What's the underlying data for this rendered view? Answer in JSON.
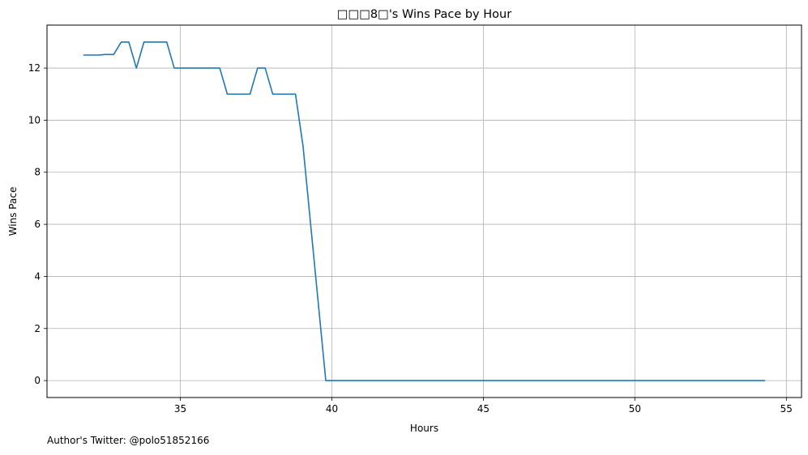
{
  "chart_data": {
    "type": "line",
    "title": "□□□8□'s Wins Pace by Hour",
    "xlabel": "Hours",
    "ylabel": "Wins Pace",
    "xlim": [
      30.6,
      55.5
    ],
    "ylim": [
      -0.65,
      13.65
    ],
    "xticks": [
      35,
      40,
      45,
      50,
      55
    ],
    "yticks": [
      0,
      2,
      4,
      6,
      8,
      10,
      12
    ],
    "grid": true,
    "series": [
      {
        "color": "#1f77b4",
        "points": [
          [
            31.8,
            12.5
          ],
          [
            32.3,
            12.5
          ],
          [
            32.5,
            12.52
          ],
          [
            32.8,
            12.52
          ],
          [
            33.05,
            13.0
          ],
          [
            33.3,
            13.0
          ],
          [
            33.55,
            12.0
          ],
          [
            33.8,
            13.0
          ],
          [
            34.3,
            13.0
          ],
          [
            34.55,
            13.0
          ],
          [
            34.8,
            12.0
          ],
          [
            36.3,
            12.0
          ],
          [
            36.55,
            11.0
          ],
          [
            37.3,
            11.0
          ],
          [
            37.55,
            12.0
          ],
          [
            37.8,
            12.0
          ],
          [
            38.05,
            11.0
          ],
          [
            38.8,
            11.0
          ],
          [
            39.05,
            9.0
          ],
          [
            39.3,
            6.0
          ],
          [
            39.8,
            0.0
          ],
          [
            54.3,
            0.0
          ]
        ]
      }
    ]
  },
  "footer": {
    "text": "Author's Twitter: @polo51852166"
  }
}
